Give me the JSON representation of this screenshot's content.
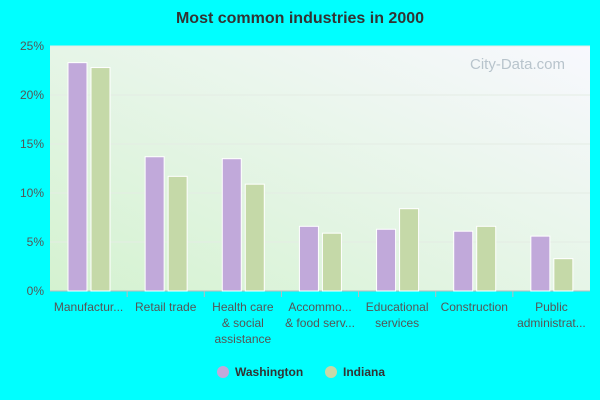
{
  "chart_data": {
    "type": "bar",
    "title": "Most common industries in 2000",
    "watermark": "City-Data.com",
    "categories": [
      [
        "Manufactur..."
      ],
      [
        "Retail trade"
      ],
      [
        "Health care",
        "& social",
        "assistance"
      ],
      [
        "Accommo...",
        "& food serv..."
      ],
      [
        "Educational",
        "services"
      ],
      [
        "Construction"
      ],
      [
        "Public",
        "administrat..."
      ]
    ],
    "series": [
      {
        "name": "Washington",
        "color": "#c1a9da",
        "values": [
          23.3,
          13.7,
          13.5,
          6.6,
          6.3,
          6.1,
          5.6
        ]
      },
      {
        "name": "Indiana",
        "color": "#c5d9a8",
        "values": [
          22.8,
          11.7,
          10.9,
          5.9,
          8.4,
          6.6,
          3.3
        ]
      }
    ],
    "ylim": [
      0,
      25
    ],
    "yticks": [
      {
        "value": 0,
        "label": "0%"
      },
      {
        "value": 5,
        "label": "5%"
      },
      {
        "value": 10,
        "label": "10%"
      },
      {
        "value": 15,
        "label": "15%"
      },
      {
        "value": 20,
        "label": "20%"
      },
      {
        "value": 25,
        "label": "25%"
      }
    ],
    "grid": true
  }
}
